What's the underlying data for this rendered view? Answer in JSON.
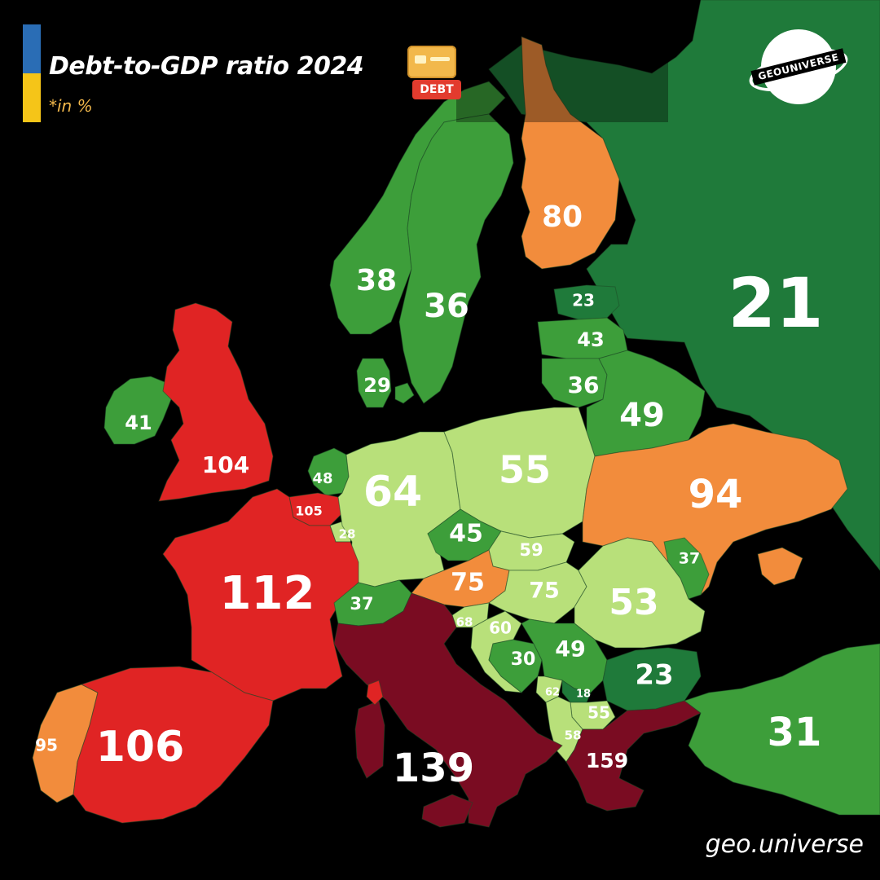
{
  "title": "Debt-to-GDP ratio 2024",
  "subtitle": "*in %",
  "debt_icon": {
    "icon": "credit-card-icon",
    "tag": "DEBT"
  },
  "logo": {
    "text": "GEOUNIVERSE",
    "icon": "planet-logo-icon"
  },
  "watermark": "geo.universe",
  "colors": {
    "background": "#000000",
    "very_low": "#1f7a3a",
    "low": "#3d9e3a",
    "medium_low": "#b8e07a",
    "medium_high": "#f28c3c",
    "high": "#e02424",
    "very_high": "#7a0c22"
  },
  "chart_data": {
    "type": "choropleth-map",
    "unit": "%",
    "values": [
      {
        "id": "russia",
        "value": "21",
        "color": "#1f7a3a"
      },
      {
        "id": "finland",
        "value": "80",
        "color": "#f28c3c"
      },
      {
        "id": "norway",
        "value": "38",
        "color": "#3d9e3a"
      },
      {
        "id": "sweden",
        "value": "36",
        "color": "#3d9e3a"
      },
      {
        "id": "denmark",
        "value": "29",
        "color": "#3d9e3a"
      },
      {
        "id": "estonia",
        "value": "23",
        "color": "#1f7a3a"
      },
      {
        "id": "latvia",
        "value": "43",
        "color": "#3d9e3a"
      },
      {
        "id": "lithuania",
        "value": "36",
        "color": "#3d9e3a"
      },
      {
        "id": "belarus",
        "value": "49",
        "color": "#3d9e3a"
      },
      {
        "id": "ireland",
        "value": "41",
        "color": "#3d9e3a"
      },
      {
        "id": "uk",
        "value": "104",
        "color": "#e02424"
      },
      {
        "id": "netherlands",
        "value": "48",
        "color": "#3d9e3a"
      },
      {
        "id": "belgium",
        "value": "105",
        "color": "#e02424"
      },
      {
        "id": "luxembourg",
        "value": "28",
        "color": "#b8e07a"
      },
      {
        "id": "germany",
        "value": "64",
        "color": "#b8e07a"
      },
      {
        "id": "poland",
        "value": "55",
        "color": "#b8e07a"
      },
      {
        "id": "ukraine",
        "value": "94",
        "color": "#f28c3c"
      },
      {
        "id": "czechia",
        "value": "45",
        "color": "#3d9e3a"
      },
      {
        "id": "slovakia",
        "value": "59",
        "color": "#b8e07a"
      },
      {
        "id": "moldova",
        "value": "37",
        "color": "#3d9e3a"
      },
      {
        "id": "france",
        "value": "112",
        "color": "#e02424"
      },
      {
        "id": "austria",
        "value": "75",
        "color": "#f28c3c"
      },
      {
        "id": "hungary",
        "value": "75",
        "color": "#b8e07a"
      },
      {
        "id": "romania",
        "value": "53",
        "color": "#b8e07a"
      },
      {
        "id": "switzerland",
        "value": "37",
        "color": "#3d9e3a"
      },
      {
        "id": "slovenia",
        "value": "68",
        "color": "#b8e07a"
      },
      {
        "id": "croatia",
        "value": "60",
        "color": "#b8e07a"
      },
      {
        "id": "bosnia",
        "value": "30",
        "color": "#3d9e3a"
      },
      {
        "id": "serbia",
        "value": "49",
        "color": "#3d9e3a"
      },
      {
        "id": "bulgaria",
        "value": "23",
        "color": "#1f7a3a"
      },
      {
        "id": "montenegro",
        "value": "62",
        "color": "#b8e07a"
      },
      {
        "id": "kosovo",
        "value": "18",
        "color": "#1f7a3a"
      },
      {
        "id": "north_macedonia",
        "value": "55",
        "color": "#b8e07a"
      },
      {
        "id": "albania",
        "value": "58",
        "color": "#b8e07a"
      },
      {
        "id": "greece",
        "value": "159",
        "color": "#7a0c22"
      },
      {
        "id": "turkey",
        "value": "31",
        "color": "#3d9e3a"
      },
      {
        "id": "portugal",
        "value": "95",
        "color": "#f28c3c"
      },
      {
        "id": "spain",
        "value": "106",
        "color": "#e02424"
      },
      {
        "id": "italy",
        "value": "139",
        "color": "#7a0c22"
      }
    ]
  }
}
